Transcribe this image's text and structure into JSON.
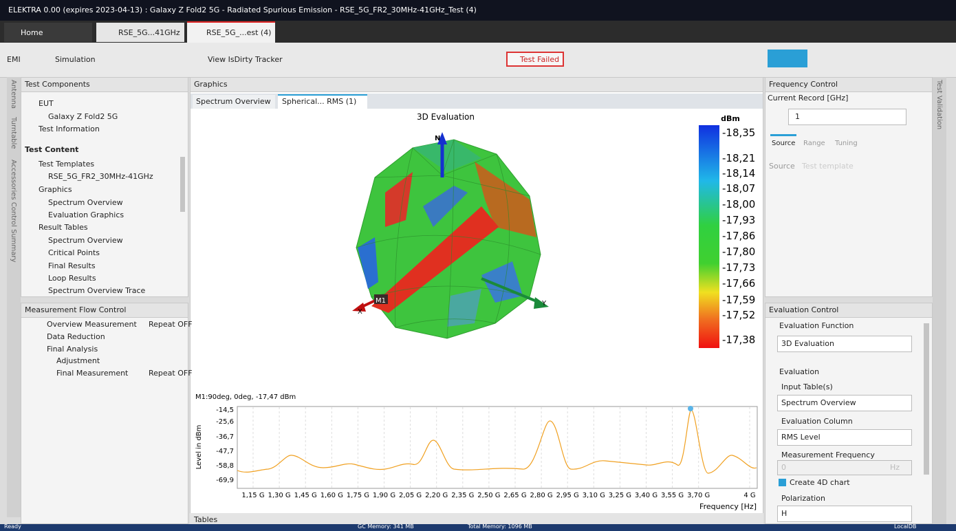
{
  "title_bar": {
    "title": "ELEKTRA 0.00 (expires 2023-04-13) : Galaxy Z Fold2 5G - Radiated Spurious Emission - RSE_5G_FR2_30MHz-41GHz_Test (4)"
  },
  "tabs": [
    "Home",
    "RSE_5G...41GHz",
    "RSE_5G_...est (4)"
  ],
  "toolbar": {
    "mode": "EMI",
    "simulation": "Simulation",
    "tracker": "View IsDirty Tracker",
    "status": "Test Failed"
  },
  "side_tabs": [
    "Antenna",
    "Turntable",
    "Accessories Control Summary"
  ],
  "test_components": {
    "title": "Test Components",
    "items": [
      "EUT",
      "Galaxy Z Fold2 5G",
      "Test Information",
      "Test Content",
      "Test Templates",
      "RSE_5G_FR2_30MHz-41GHz",
      "Graphics",
      "Spectrum Overview",
      "Evaluation Graphics",
      "Result Tables",
      "Spectrum Overview",
      "Critical Points",
      "Final Results",
      "Loop Results",
      "Spectrum Overview Trace"
    ]
  },
  "measurement_flow": {
    "title": "Measurement Flow Control",
    "items": [
      {
        "name": "Overview Measurement",
        "repeat": "Repeat OFF"
      },
      {
        "name": "Data Reduction"
      },
      {
        "name": "Final Analysis"
      },
      {
        "name": "Adjustment"
      },
      {
        "name": "Final Measurement",
        "repeat": "Repeat OFF"
      }
    ]
  },
  "graphics": {
    "title": "Graphics",
    "tabs": [
      "Spectrum Overview",
      "Spherical... RMS (1)"
    ],
    "evaluation": {
      "title": "3D Evaluation",
      "unit": "dBm",
      "scale_labels": [
        "-18,35",
        "-18,21",
        "-18,14",
        "-18,07",
        "-18,00",
        "-17,93",
        "-17,86",
        "-17,80",
        "-17,73",
        "-17,66",
        "-17,59",
        "-17,52",
        "-17,38"
      ],
      "axes": [
        "N",
        "X",
        "Y"
      ],
      "marker": "M1"
    },
    "spectrum": {
      "marker_info": "M1:90deg, 0deg, -17,47 dBm",
      "y_label": "Level in dBm",
      "yticks": [
        "-14,5",
        "-25,6",
        "-36,7",
        "-47,7",
        "-58,8",
        "-69,9"
      ],
      "xticks": [
        "1,15 G",
        "1,30 G",
        "1,45 G",
        "1,60 G",
        "1,75 G",
        "1,90 G",
        "2,05 G",
        "2,20 G",
        "2,35 G",
        "2,50 G",
        "2,65 G",
        "2,80 G",
        "2,95 G",
        "3,10 G",
        "3,25 G",
        "3,40 G",
        "3,55 G",
        "3,70 G",
        "4 G"
      ],
      "x_label": "Frequency [Hz]"
    }
  },
  "tables": {
    "title": "Tables"
  },
  "frequency_control": {
    "title": "Frequency Control",
    "record_label": "Current Record [GHz]",
    "record_value": "1",
    "tabs": [
      "Source",
      "Range",
      "Tuning"
    ],
    "source_label": "Source",
    "source_value": "Test template"
  },
  "evaluation_control": {
    "title": "Evaluation Control",
    "function_label": "Evaluation Function",
    "function_value": "3D Evaluation",
    "section": "Evaluation",
    "input_label": "Input Table(s)",
    "input_value": "Spectrum Overview",
    "column_label": "Evaluation Column",
    "column_value": "RMS Level",
    "frequency_label": "Measurement Frequency",
    "frequency_value": "0",
    "frequency_unit": "Hz",
    "chart_option": "Create 4D chart",
    "polarization_label": "Polarization",
    "polarization_value": "H"
  },
  "right_side_tab": "Test Validation",
  "status_bar": {
    "state": "Ready",
    "gc_memory": "GC Memory: 341 MB",
    "total_memory": "Total Memory: 1096 MB",
    "database": "LocalDB"
  }
}
